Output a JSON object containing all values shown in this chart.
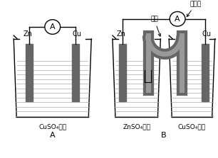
{
  "bg_color": "#ffffff",
  "fig_width": 3.06,
  "fig_height": 2.23,
  "dpi": 100,
  "label_A_diagram": "A",
  "label_B_diagram": "B",
  "diagram_A": {
    "solution_label": "CuSO₄溶液",
    "zn_label": "Zn",
    "cu_label": "Cu",
    "electrode_color": "#666666",
    "ammeter_label": "A",
    "wire_color": "#000000"
  },
  "diagram_B": {
    "zn_label": "Zn",
    "cu_label": "Cu",
    "electrode_color": "#666666",
    "salt_bridge_label": "盐桥",
    "ammeter_label": "A",
    "current_meter_label": "电流表",
    "left_solution_label": "ZnSO₄溶液",
    "right_solution_label": "CuSO₄溶液",
    "wire_color": "#000000"
  },
  "font_size_electrode": 7,
  "font_size_solution": 6.5,
  "font_size_ammeter": 8,
  "font_size_diagram": 8,
  "font_size_label": 6.5
}
